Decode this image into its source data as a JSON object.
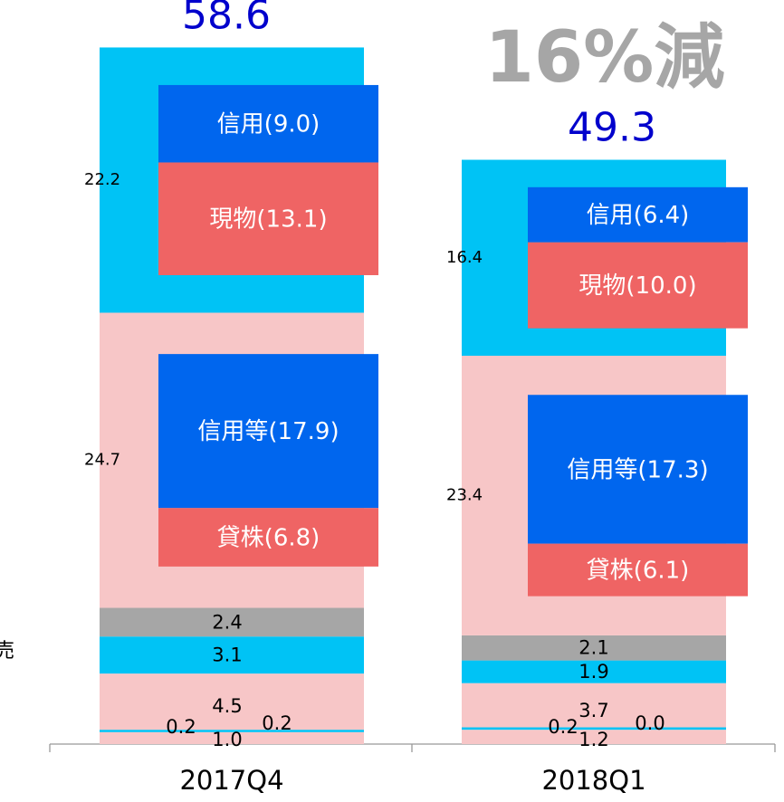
{
  "chart_data": {
    "type": "bar",
    "stacked": true,
    "categories": [
      "2017Q4",
      "2018Q1"
    ],
    "totals": [
      "58.6",
      "49.3"
    ],
    "change_annotation": "16%減",
    "side_label_fragment": "売",
    "segment_order_bottom_to_top": [
      "1.0 / 0.2 / 0.2",
      "4.5",
      "3.1 / 1.9",
      "2.4 / 2.1",
      "24.7 / 23.4",
      "22.2 / 16.4"
    ],
    "series": [
      {
        "values": [
          1.0,
          1.2
        ],
        "labels": [
          "1.0",
          "1.2"
        ],
        "color": "#f7c6c7"
      },
      {
        "values": [
          0.2,
          0.2
        ],
        "labels": [
          "0.2",
          "0.2"
        ],
        "color": "#00c3f5"
      },
      {
        "values": [
          0.2,
          0.0
        ],
        "labels": [
          "0.2",
          "0.0"
        ],
        "color": "#f7c6c7"
      },
      {
        "values": [
          4.5,
          3.7
        ],
        "labels": [
          "4.5",
          "3.7"
        ],
        "color": "#f7c6c7"
      },
      {
        "values": [
          3.1,
          1.9
        ],
        "labels": [
          "3.1",
          "1.9"
        ],
        "color": "#00c3f5"
      },
      {
        "values": [
          2.4,
          2.1
        ],
        "labels": [
          "2.4",
          "2.1"
        ],
        "color": "#a6a6a6"
      },
      {
        "values": [
          24.7,
          23.4
        ],
        "labels": [
          "24.7",
          "23.4"
        ],
        "color": "#f7c6c7"
      },
      {
        "values": [
          22.2,
          16.4
        ],
        "labels": [
          "22.2",
          "16.4"
        ],
        "color": "#00c3f5"
      }
    ],
    "breakdowns": [
      {
        "parent_segment": 7,
        "category": 0,
        "items": [
          {
            "label": "信用(9.0)",
            "value": 9.0,
            "color": "#0066ee"
          },
          {
            "label": "現物(13.1)",
            "value": 13.1,
            "color": "#ef6464"
          }
        ]
      },
      {
        "parent_segment": 6,
        "category": 0,
        "items": [
          {
            "label": "信用等(17.9)",
            "value": 17.9,
            "color": "#0066ee"
          },
          {
            "label": "貸株(6.8)",
            "value": 6.8,
            "color": "#ef6464"
          }
        ]
      },
      {
        "parent_segment": 7,
        "category": 1,
        "items": [
          {
            "label": "信用(6.4)",
            "value": 6.4,
            "color": "#0066ee"
          },
          {
            "label": "現物(10.0)",
            "value": 10.0,
            "color": "#ef6464"
          }
        ]
      },
      {
        "parent_segment": 6,
        "category": 1,
        "items": [
          {
            "label": "信用等(17.3)",
            "value": 17.3,
            "color": "#0066ee"
          },
          {
            "label": "貸株(6.1)",
            "value": 6.1,
            "color": "#ef6464"
          }
        ]
      }
    ],
    "colors": {
      "total_label": "#0000cc",
      "annotation": "#a6a6a6",
      "axis": "#999999",
      "text": "#000000",
      "inner_text": "#ffffff"
    },
    "grid": false,
    "legend": "none"
  }
}
